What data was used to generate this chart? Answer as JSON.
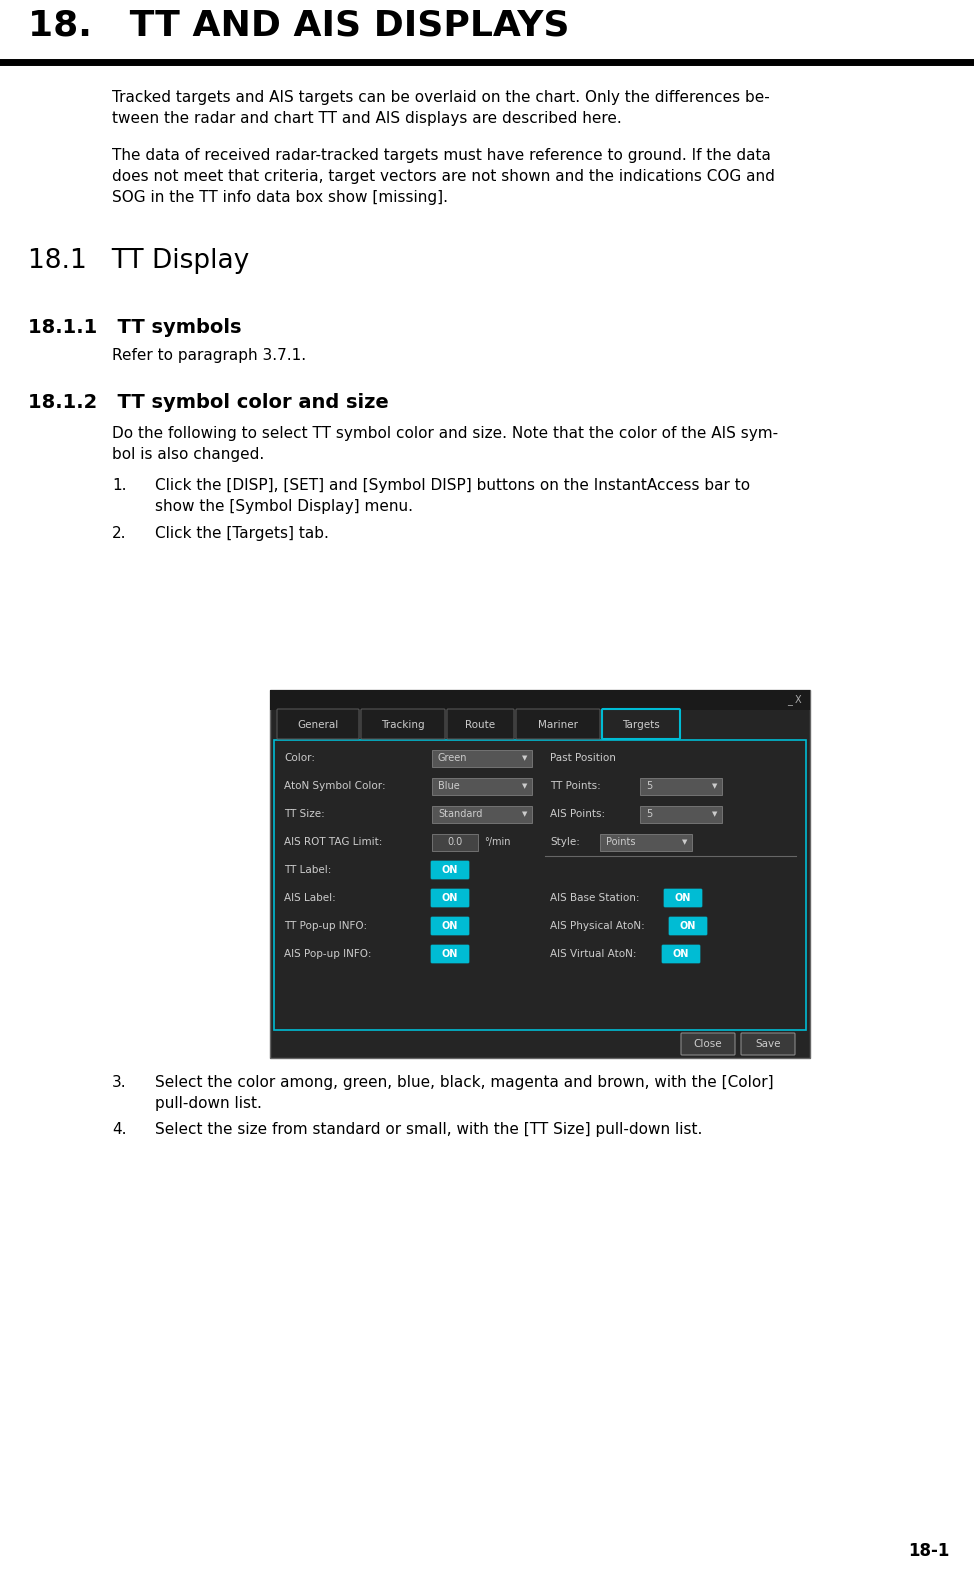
{
  "page_bg": "#ffffff",
  "chapter_title": "18.   TT AND AIS DISPLAYS",
  "chapter_title_fontsize": 26,
  "body_fontsize": 11.0,
  "section_18_fontsize": 19,
  "section_heading_fontsize": 14,
  "para1": "Tracked targets and AIS targets can be overlaid on the chart. Only the differences be-\ntween the radar and chart TT and AIS displays are described here.",
  "para2": "The data of received radar-tracked targets must have reference to ground. If the data\ndoes not meet that criteria, target vectors are not shown and the indications COG and\nSOG in the TT info data box show [missing].",
  "para_181": "Refer to paragraph 3.7.1.",
  "para_182_intro": "Do the following to select TT symbol color and size. Note that the color of the AIS sym-\nbol is also changed.",
  "list_item1_num": "1.",
  "list_item1_text": "Click the [DISP], [SET] and [Symbol DISP] buttons on the InstantAccess bar to\nshow the [Symbol Display] menu.",
  "list_item2_num": "2.",
  "list_item2_text": "Click the [Targets] tab.",
  "list_item3_num": "3.",
  "list_item3_text": "Select the color among, green, blue, black, magenta and brown, with the [Color]\npull-down list.",
  "list_item4_num": "4.",
  "list_item4_text": "Select the size from standard or small, with the [TT Size] pull-down list.",
  "page_number": "18-1",
  "dialog_bg": "#252525",
  "dialog_titlebar_bg": "#1a1a1a",
  "dialog_tab_active_border": "#00bcd4",
  "dialog_tab_active_bg": "#252525",
  "dialog_tab_inactive_bg": "#1e1e1e",
  "dialog_on_btn_color": "#00bcd4",
  "dialog_text_color": "#cccccc",
  "dialog_field_bg": "#555555",
  "dialog_field_dark_bg": "#444444"
}
